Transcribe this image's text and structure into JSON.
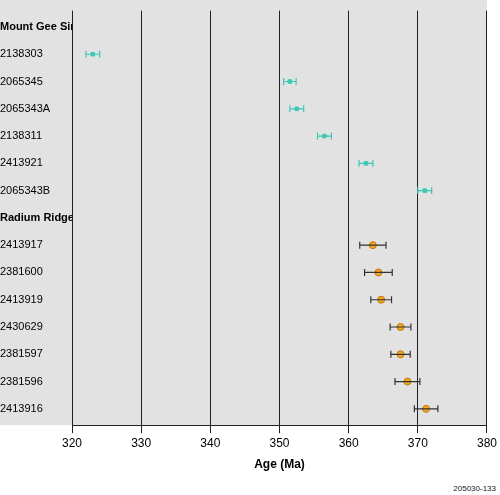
{
  "chart_data": {
    "type": "scatter",
    "x_label": "Age (Ma)",
    "xlim": [
      320,
      380
    ],
    "xticks": [
      320,
      330,
      340,
      350,
      360,
      370,
      380
    ],
    "grid": true,
    "annotation": "205030-133",
    "series": [
      {
        "name": "Mount Gee Sinter",
        "color": "#3cc8b4",
        "marker": "dash",
        "categories": [
          "2138303",
          "2065345",
          "2065343A",
          "2138311",
          "2413921",
          "2065343B"
        ],
        "values": [
          323,
          351.5,
          352.5,
          356.5,
          362.5,
          371
        ],
        "errors": [
          1,
          0.9,
          1,
          1,
          1,
          1
        ]
      },
      {
        "name": "Radium Ridge Breccia",
        "color": "#f5a623",
        "marker": "circle",
        "categories": [
          "2413917",
          "2381600",
          "2413919",
          "2430629",
          "2381597",
          "2381596",
          "2413916"
        ],
        "values": [
          363.5,
          364.3,
          364.7,
          367.5,
          367.5,
          368.5,
          371.2
        ],
        "errors": [
          1.9,
          2,
          1.5,
          1.5,
          1.4,
          1.8,
          1.7
        ]
      }
    ]
  }
}
